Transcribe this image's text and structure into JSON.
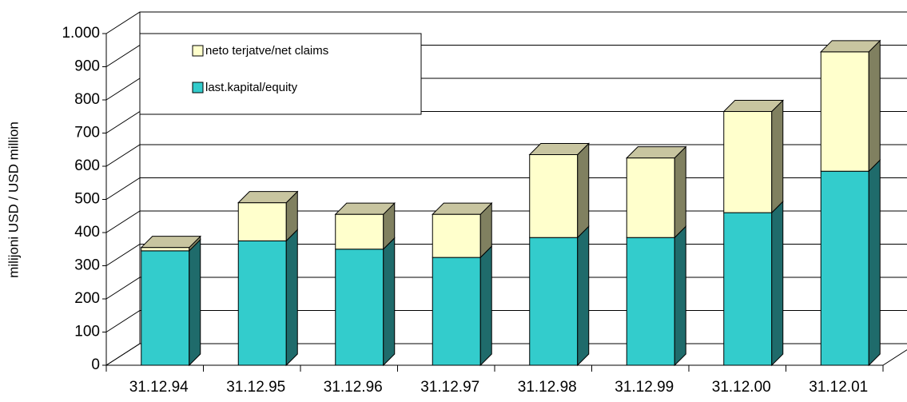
{
  "chart_data": {
    "type": "stacked_bar_3d",
    "y_label": "milijoni USD / USD million",
    "categories": [
      "31.12.94",
      "31.12.95",
      "31.12.96",
      "31.12.97",
      "31.12.98",
      "31.12.99",
      "31.12.00",
      "31.12.01"
    ],
    "series": [
      {
        "name": "last.kapital/equity",
        "color": "#33cccc",
        "values": [
          345,
          375,
          350,
          325,
          385,
          385,
          460,
          585
        ]
      },
      {
        "name": "neto terjatve/net claims",
        "color": "#ffffcc",
        "values": [
          10,
          115,
          105,
          130,
          250,
          240,
          305,
          360
        ]
      }
    ],
    "ylim": [
      0,
      1000
    ],
    "yticks": [
      0,
      100,
      200,
      300,
      400,
      500,
      600,
      700,
      800,
      900,
      {
        "value": 1000,
        "label": "1.000"
      }
    ],
    "grid": true
  }
}
